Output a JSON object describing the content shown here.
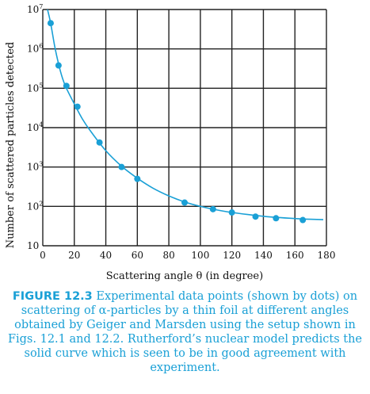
{
  "chart_data": {
    "type": "scatter",
    "xlabel": "Scattering angle θ (in degree)",
    "ylabel": "Number of scattered particles detected",
    "xlim": [
      0,
      180
    ],
    "ylim": [
      10,
      10000000
    ],
    "yscale": "log",
    "grid": true,
    "x_ticks": [
      "0",
      "20",
      "40",
      "60",
      "80",
      "100",
      "120",
      "140",
      "160",
      "180"
    ],
    "y_ticks": [
      {
        "base": "10",
        "exp": ""
      },
      {
        "base": "10",
        "exp": "2"
      },
      {
        "base": "10",
        "exp": "3"
      },
      {
        "base": "10",
        "exp": "4"
      },
      {
        "base": "10",
        "exp": "5"
      },
      {
        "base": "10",
        "exp": "6"
      },
      {
        "base": "10",
        "exp": "7"
      }
    ],
    "series": [
      {
        "kind": "points",
        "x": [
          5,
          10,
          15,
          22,
          36,
          50,
          60,
          90,
          108,
          120,
          135,
          148,
          165
        ],
        "y": [
          4500000,
          380000,
          115000,
          34000,
          4200,
          1000,
          500,
          125,
          85,
          70,
          55,
          50,
          45
        ]
      },
      {
        "kind": "curve",
        "x": [
          3,
          5,
          7.5,
          10,
          12.5,
          15,
          20,
          25,
          30,
          40,
          50,
          60,
          70,
          80,
          90,
          100,
          110,
          120,
          130,
          140,
          150,
          160,
          170,
          178
        ],
        "y": [
          10000000,
          4500000,
          1200000,
          420000,
          180000,
          100000,
          40000,
          17000,
          8500,
          2600,
          1050,
          520,
          290,
          185,
          130,
          100,
          82,
          70,
          62,
          56,
          52,
          49,
          47,
          46
        ]
      }
    ],
    "colors": {
      "data": "#1aa0d6",
      "grid": "#222222"
    }
  },
  "caption": {
    "label": "FIGURE 12.3",
    "text": "Experimental data points (shown by dots) on scattering of α-particles by a thin foil at different angles obtained by Geiger and Marsden using the setup shown in Figs. 12.1 and 12.2. Rutherford’s nuclear model predicts the solid curve which is seen to be in good agreement with experiment."
  }
}
